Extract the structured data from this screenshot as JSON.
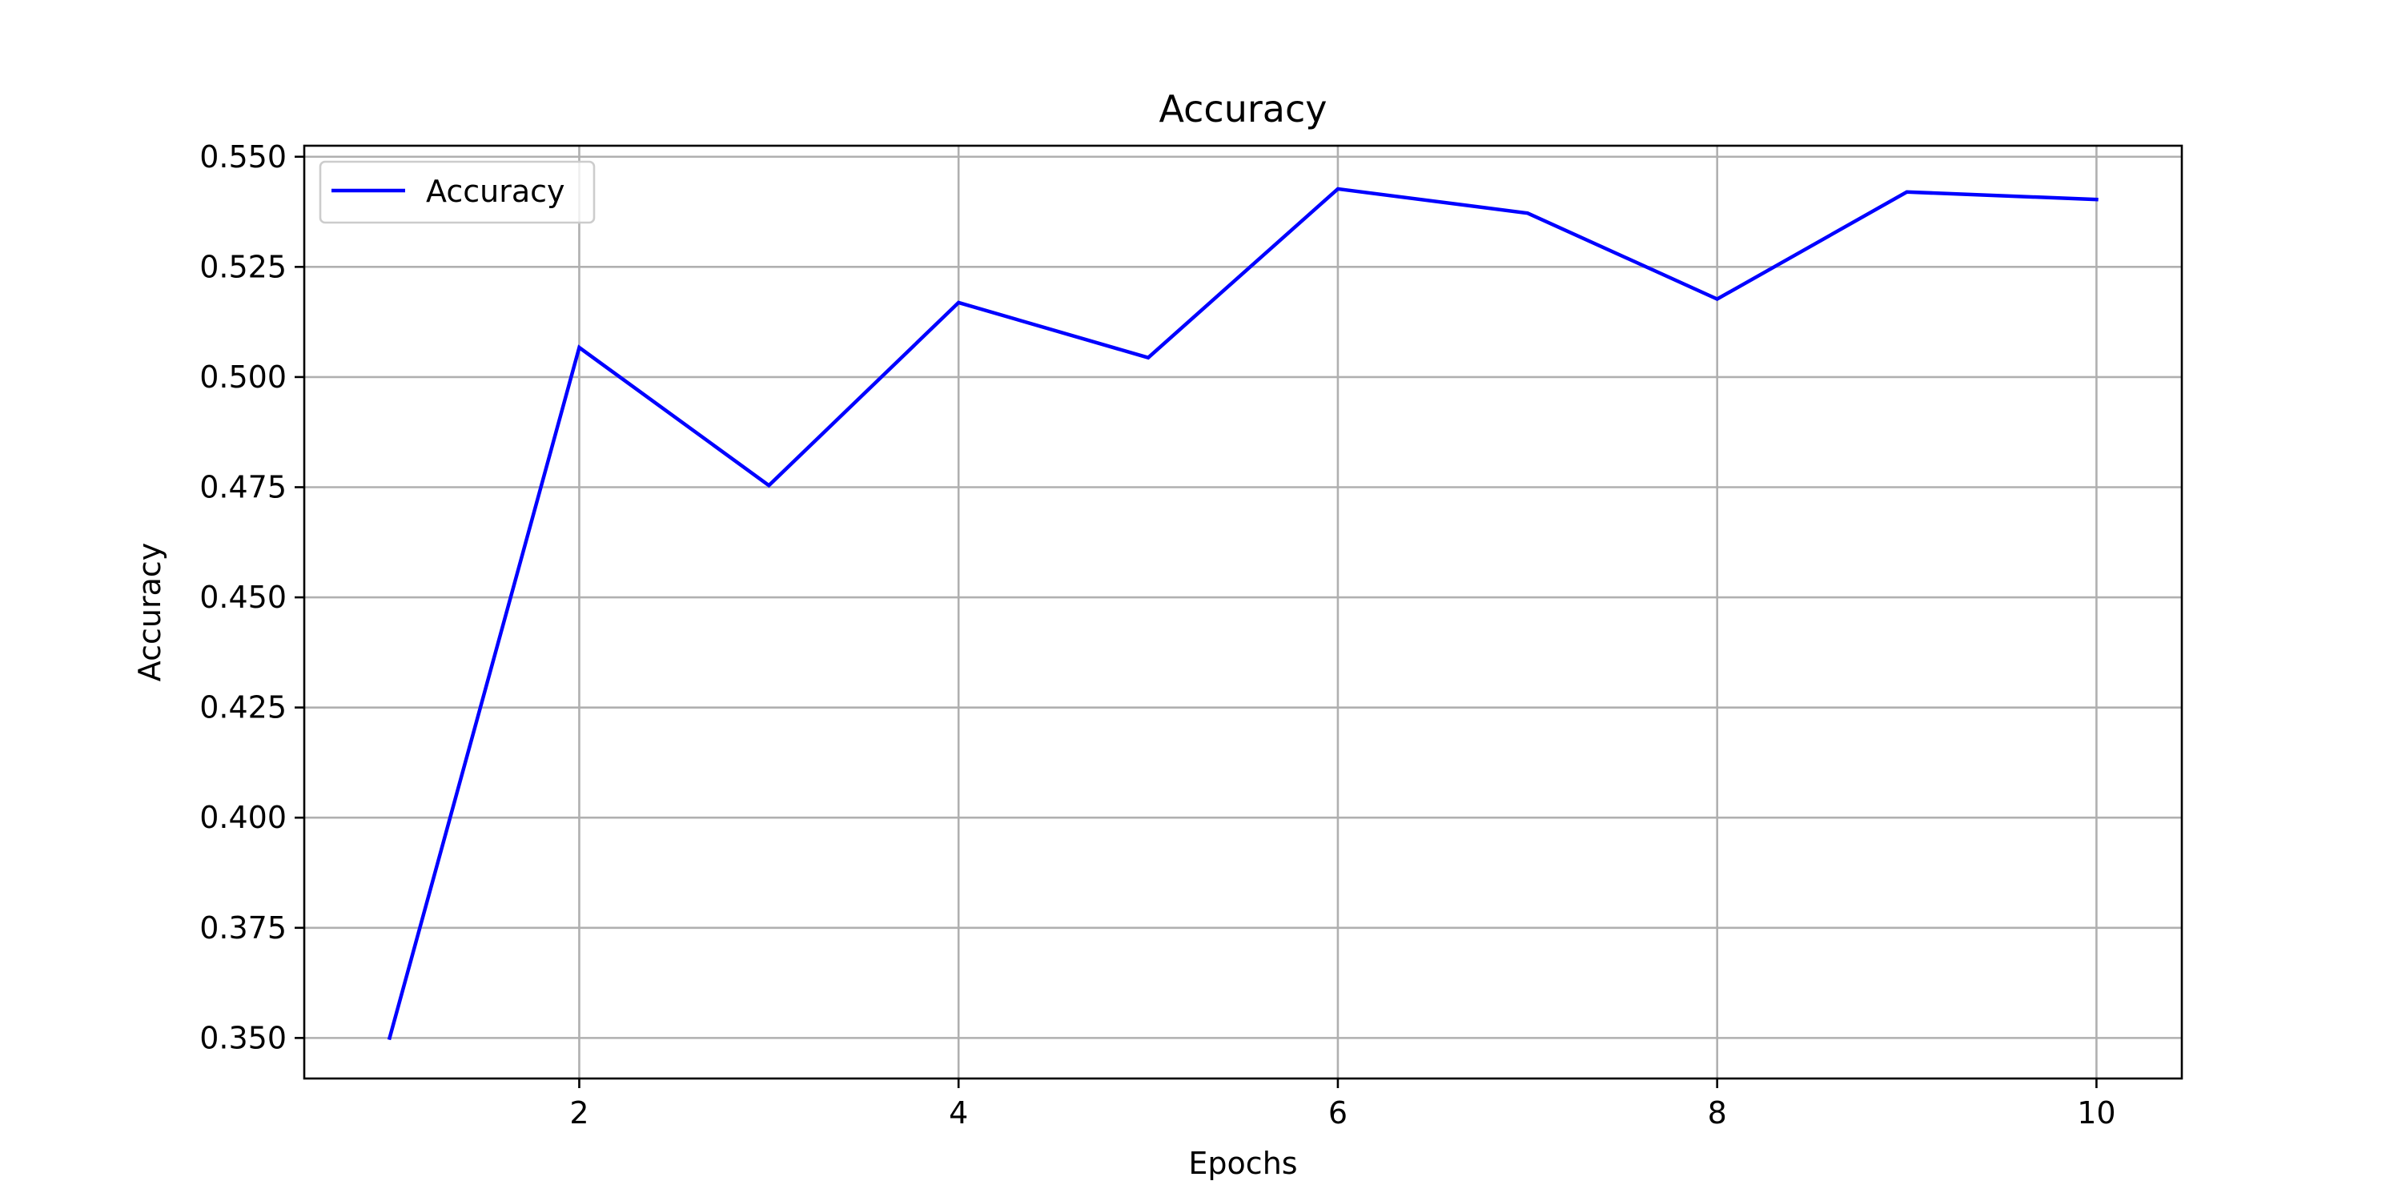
{
  "chart_data": {
    "type": "line",
    "title": "Accuracy",
    "xlabel": "Epochs",
    "ylabel": "Accuracy",
    "x": [
      1,
      2,
      3,
      4,
      5,
      6,
      7,
      8,
      9,
      10
    ],
    "xlim": [
      0.55,
      10.45
    ],
    "ylim": [
      0.3408,
      0.5525
    ],
    "xticks": [
      2,
      4,
      6,
      8,
      10
    ],
    "xtick_labels": [
      "2",
      "4",
      "6",
      "8",
      "10"
    ],
    "yticks": [
      0.35,
      0.375,
      0.4,
      0.425,
      0.45,
      0.475,
      0.5,
      0.525,
      0.55
    ],
    "ytick_labels": [
      "0.350",
      "0.375",
      "0.400",
      "0.425",
      "0.450",
      "0.475",
      "0.500",
      "0.525",
      "0.550"
    ],
    "grid": true,
    "legend_position": "upper-left",
    "series": [
      {
        "name": "Accuracy",
        "color": "#0000ff",
        "values": [
          0.35,
          0.5067,
          0.4754,
          0.5169,
          0.5044,
          0.5427,
          0.5372,
          0.5177,
          0.542,
          0.5403
        ]
      }
    ]
  }
}
